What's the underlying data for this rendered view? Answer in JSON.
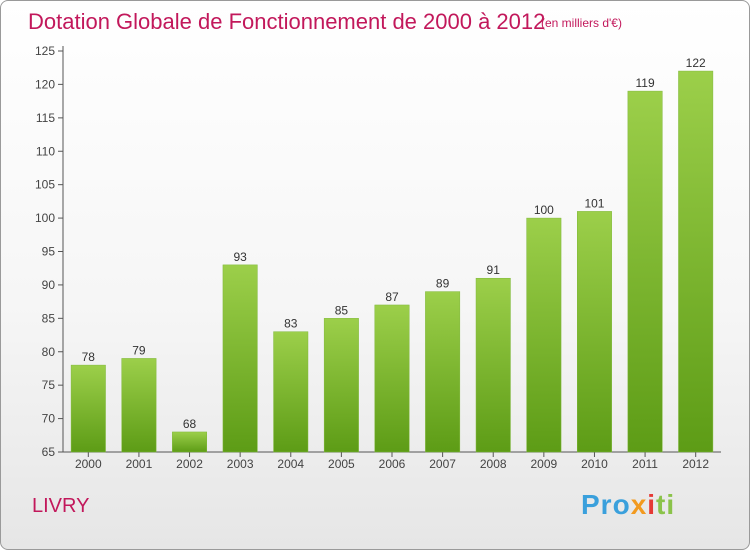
{
  "header": {
    "title": "Dotation Globale de Fonctionnement de 2000 à 2012",
    "unit": "(en milliers d'€)"
  },
  "footer": {
    "city": "LIVRY",
    "brand_parts": [
      "Pro",
      "x",
      "i",
      "ti"
    ]
  },
  "colors": {
    "title": "#c2185b",
    "bar_top": "#9ccf4a",
    "bar_bottom": "#5d9c16",
    "axis": "#555555"
  },
  "chart_data": {
    "type": "bar",
    "categories": [
      "2000",
      "2001",
      "2002",
      "2003",
      "2004",
      "2005",
      "2006",
      "2007",
      "2008",
      "2009",
      "2010",
      "2011",
      "2012"
    ],
    "values": [
      78,
      79,
      68,
      93,
      83,
      85,
      87,
      89,
      91,
      100,
      101,
      119,
      122
    ],
    "yticks": [
      65,
      70,
      75,
      80,
      85,
      90,
      95,
      100,
      105,
      110,
      115,
      120,
      125
    ],
    "ylim": [
      65,
      125
    ],
    "grid": false,
    "data_labels": true
  }
}
